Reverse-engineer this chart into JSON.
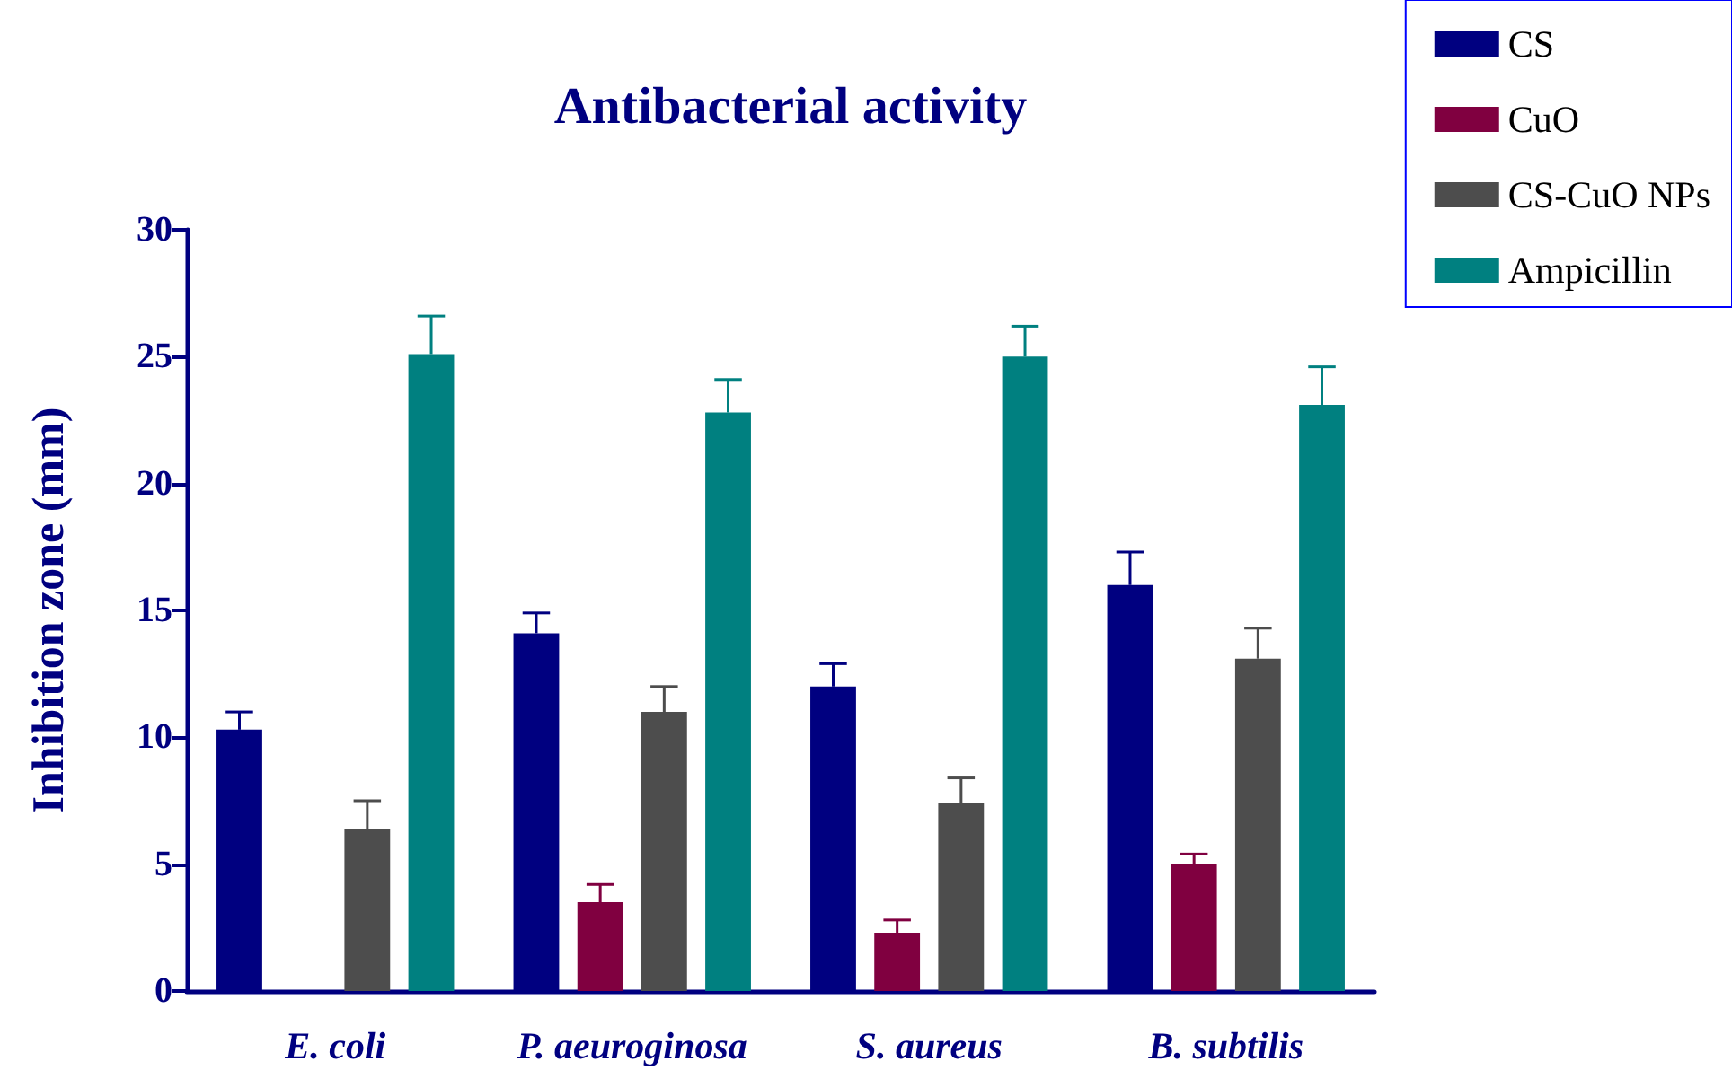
{
  "chart_data": {
    "type": "bar",
    "title": "Antibacterial activity",
    "ylabel": "Inhibition zone (mm)",
    "categories": [
      "E. coli",
      "P. aeuroginosa",
      "S. aureus",
      "B. subtilis"
    ],
    "series": [
      {
        "name": "CS",
        "color": "#000080",
        "values": [
          10.3,
          14.1,
          12.0,
          16.0
        ],
        "errors": [
          [
            10.3,
            11.0
          ],
          [
            14.1,
            14.9
          ],
          [
            12.0,
            12.9
          ],
          [
            16.0,
            17.3
          ]
        ]
      },
      {
        "name": "CuO",
        "color": "#800040",
        "values": [
          0,
          3.5,
          2.3,
          5.0
        ],
        "errors": [
          null,
          [
            3.5,
            4.2
          ],
          [
            2.3,
            2.8
          ],
          [
            5.0,
            5.4
          ]
        ]
      },
      {
        "name": "CS-CuO NPs",
        "color": "#4d4d4d",
        "values": [
          6.4,
          11.0,
          7.4,
          13.1
        ],
        "errors": [
          [
            6.4,
            7.5
          ],
          [
            11.0,
            12.0
          ],
          [
            7.4,
            8.4
          ],
          [
            13.1,
            14.3
          ]
        ]
      },
      {
        "name": "Ampicillin",
        "color": "#008080",
        "values": [
          25.1,
          22.8,
          25.0,
          23.1
        ],
        "errors": [
          [
            25.1,
            26.6
          ],
          [
            22.8,
            24.1
          ],
          [
            25.0,
            26.2
          ],
          [
            23.1,
            24.6
          ]
        ]
      }
    ],
    "ylim": [
      0,
      30
    ],
    "yticks": [
      0,
      5,
      10,
      15,
      20,
      25,
      30
    ],
    "legend": "top right"
  }
}
